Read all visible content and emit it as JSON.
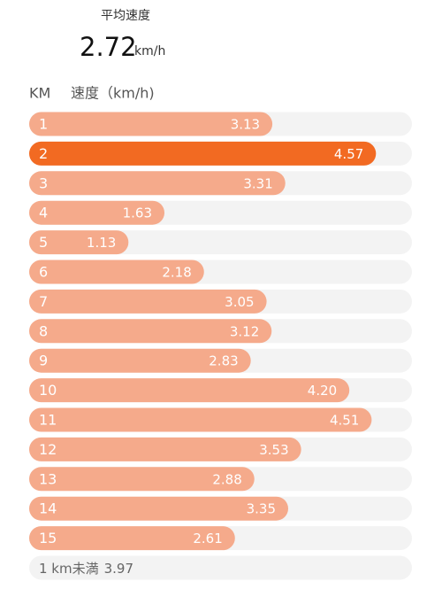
{
  "summary": {
    "label": "平均速度",
    "value": "2.72",
    "unit": "km/h"
  },
  "chart_data": {
    "type": "bar",
    "orientation": "horizontal",
    "column_headers": [
      "KM",
      "速度（km/h)"
    ],
    "categories": [
      "1",
      "2",
      "3",
      "4",
      "5",
      "6",
      "7",
      "8",
      "9",
      "10",
      "11",
      "12",
      "13",
      "14",
      "15"
    ],
    "values": [
      3.13,
      4.57,
      3.31,
      1.63,
      1.13,
      2.18,
      3.05,
      3.12,
      2.83,
      4.2,
      4.51,
      3.53,
      2.88,
      3.35,
      2.61
    ],
    "value_labels": [
      "3.13",
      "4.57",
      "3.31",
      "1.63",
      "1.13",
      "2.18",
      "3.05",
      "3.12",
      "2.83",
      "4.20",
      "4.51",
      "3.53",
      "2.88",
      "3.35",
      "2.61"
    ],
    "colors": [
      "#f5aa8b",
      "#f26a22",
      "#f5aa8b",
      "#f5aa8b",
      "#f5aa8b",
      "#f5aa8b",
      "#f5aa8b",
      "#f5aa8b",
      "#f5aa8b",
      "#f5aa8b",
      "#f5aa8b",
      "#f5aa8b",
      "#f5aa8b",
      "#f5aa8b",
      "#f5aa8b"
    ],
    "track_color": "#f3f3f3",
    "xlim": [
      -0.25,
      5.07
    ],
    "remainder": {
      "label": "1 km未満",
      "value": "3.97"
    }
  }
}
